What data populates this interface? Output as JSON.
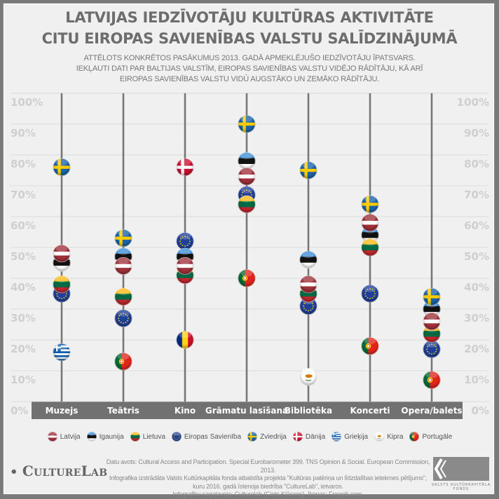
{
  "header": {
    "title_line1": "LATVIJAS IEDZĪVOTĀJU KULTŪRAS AKTIVITĀTE",
    "title_line2": "CITU EIROPAS SAVIENĪBAS VALSTU SALĪDZINĀJUMĀ",
    "subtitle_line1": "ATTĒLOTS KONKRĒTOS PASĀKUMUS 2013. GADĀ APMEKLĒJUŠO IEDZĪVOTĀJU ĪPATSVARS.",
    "subtitle_line2": "IEKĻAUTI DATI PAR BALTIJAS VALSTĪM, EIROPAS SAVIENĪBAS VALSTU VIDĒJO RĀDĪTĀJU, KĀ ARĪ",
    "subtitle_line3": "EIROPAS SAVIENĪBAS VALSTU VIDŪ AUGSTĀKO UN ZEMĀKO RĀDĪTĀJU."
  },
  "chart_data": {
    "type": "scatter",
    "categories": [
      "Muzejs",
      "Teātris",
      "Kino",
      "Grāmatu lasīšana",
      "Bibliotēka",
      "Koncerti",
      "Opera/balets"
    ],
    "y_ticks": [
      "0%",
      "10%",
      "20%",
      "30%",
      "40%",
      "50%",
      "60%",
      "70%",
      "80%",
      "90%",
      "100%"
    ],
    "ylim": [
      0,
      100
    ],
    "grid": true,
    "legend_placement": "bottom",
    "series": [
      {
        "name": "Eiropas Savienība",
        "flag": "eu",
        "values": [
          35,
          27,
          52,
          67,
          31,
          35,
          17
        ]
      },
      {
        "name": "Igaunija",
        "flag": "ee",
        "values": [
          45,
          47,
          47,
          78,
          46,
          54,
          30
        ]
      },
      {
        "name": "Lietuva",
        "flag": "lt",
        "values": [
          38,
          34,
          41,
          64,
          35,
          50,
          22
        ]
      },
      {
        "name": "Latvija",
        "flag": "lv",
        "values": [
          48,
          44,
          44,
          73,
          38,
          58,
          26
        ]
      },
      {
        "name": "Zviedrija",
        "flag": "se",
        "values": [
          76,
          53,
          null,
          90,
          75,
          64,
          34
        ]
      },
      {
        "name": "Dānija",
        "flag": "dk",
        "values": [
          null,
          null,
          76,
          null,
          null,
          null,
          null
        ]
      },
      {
        "name": "Grieķija",
        "flag": "gr",
        "values": [
          16,
          null,
          null,
          null,
          null,
          null,
          null
        ]
      },
      {
        "name": "Kipra",
        "flag": "cy",
        "values": [
          null,
          null,
          null,
          null,
          8,
          null,
          null
        ]
      },
      {
        "name": "Portugāle",
        "flag": "pt",
        "values": [
          null,
          13,
          null,
          40,
          null,
          18,
          7
        ]
      },
      {
        "flag": "ro",
        "values": [
          null,
          null,
          20,
          null,
          null,
          null,
          null
        ]
      }
    ]
  },
  "legend": [
    {
      "label": "Latvija",
      "flag": "lv"
    },
    {
      "label": "Igaunija",
      "flag": "ee"
    },
    {
      "label": "Lietuva",
      "flag": "lt"
    },
    {
      "label": "Eiropas Savienība",
      "flag": "eu"
    },
    {
      "label": "Zviedrija",
      "flag": "se"
    },
    {
      "label": "Dānija",
      "flag": "dk"
    },
    {
      "label": "Grieķija",
      "flag": "gr"
    },
    {
      "label": "Kipra",
      "flag": "cy"
    },
    {
      "label": "Portugāle",
      "flag": "pt"
    }
  ],
  "footer": {
    "logo": "CultureLab",
    "source_line1": "Datu avots: Cultural Access and Participation. Special Eurobarometer 399. TNS Opinion & Social. European Commission, 2013.",
    "source_line2": "Infografika izstrādāta Valsts Kultūrkapitāla fonda atbalstīta projekta \"Kultūras patēriņa un līdzdalības ietekmes pētījums\",",
    "source_line3": "kuru 2016. gadā īstenoja biedrība \"CultureLab\", ietvaros.",
    "source_line4": "Infografiku sagatavoja: Culturelab (Gints Klāsons). Ikonas: Freepik.com.",
    "fund_logo": "VALSTS KULTŪRKAPITĀLA FONDS"
  },
  "colors": {
    "background": "#f0f0f0",
    "frame": "#7a7a7a",
    "axis_line": "#777777",
    "category_bar": "#717171",
    "tick_label": "#d0d0d0",
    "title": "#6d6d6d"
  }
}
